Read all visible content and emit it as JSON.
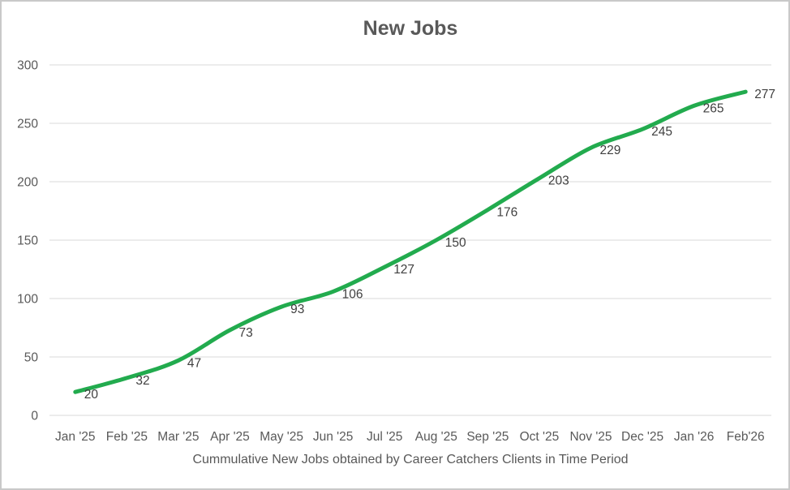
{
  "page": {
    "title": "New Jobs",
    "caption": "Cummulative New Jobs obtained by Career Catchers Clients in Time Period"
  },
  "colors": {
    "line": "#22ab4e",
    "gridline": "#d9d9d9",
    "axis_text": "#595959",
    "data_label_text": "#404040",
    "title_text": "#595959",
    "border": "#c9c9c9",
    "background": "#ffffff"
  },
  "chart_data": {
    "type": "line",
    "title": "New Jobs",
    "series": [
      {
        "name": "New Jobs",
        "values": [
          20,
          32,
          47,
          73,
          93,
          106,
          127,
          150,
          176,
          203,
          229,
          245,
          265,
          277
        ]
      }
    ],
    "categories": [
      "Jan '25",
      "Feb '25",
      "Mar '25",
      "Apr '25",
      "May '25",
      "Jun '25",
      "Jul '25",
      "Aug '25",
      "Sep '25",
      "Oct '25",
      "Nov '25",
      "Dec '25",
      "Jan '26",
      "Feb'26"
    ],
    "xlabel": "Cummulative New Jobs obtained by Career Catchers Clients in Time Period",
    "ylabel": "",
    "ylim": [
      0,
      300
    ],
    "yticks": [
      0,
      50,
      100,
      150,
      200,
      250,
      300
    ],
    "grid": true,
    "legend": false,
    "smoothed": true,
    "data_labels": true
  }
}
